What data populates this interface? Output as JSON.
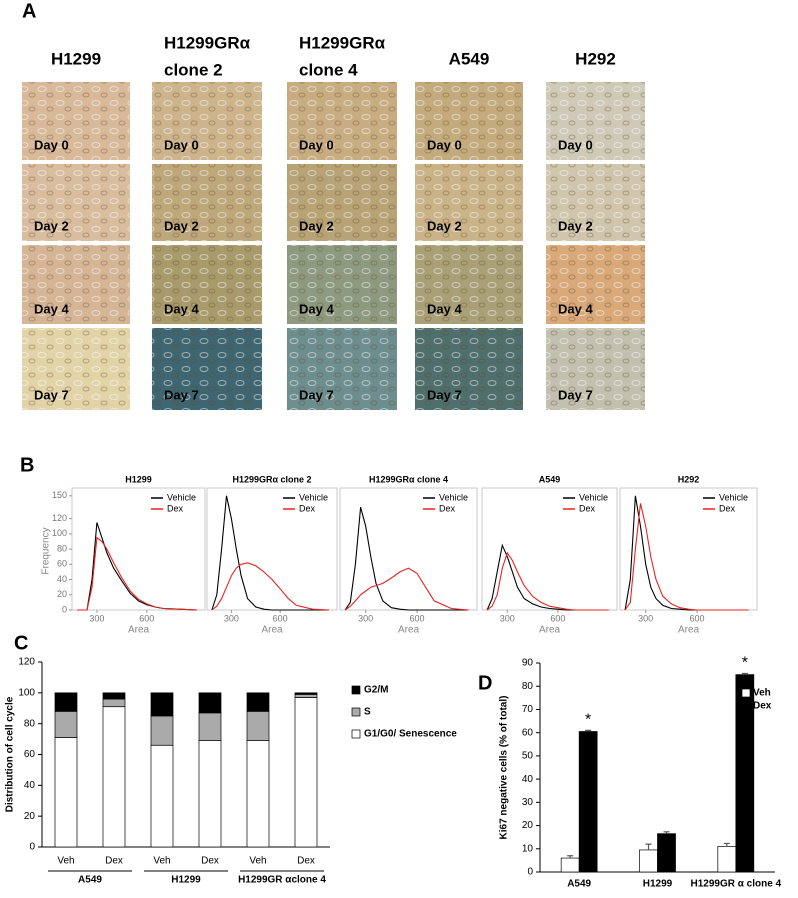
{
  "panel_labels": [
    "A",
    "B",
    "C",
    "D"
  ],
  "panel_a": {
    "columns": [
      [
        "H1299"
      ],
      [
        "H1299GRα",
        "clone 2"
      ],
      [
        "H1299GRα",
        "clone 4"
      ],
      [
        "A549"
      ],
      [
        "H292"
      ]
    ],
    "days": [
      "Day 0",
      "Day 2",
      "Day 4",
      "Day 7"
    ]
  },
  "chart_data": [
    {
      "type": "line",
      "title": "H1299",
      "xlabel": "Area",
      "ylabel": "Frequency",
      "x": [
        180,
        210,
        240,
        270,
        300,
        330,
        360,
        400,
        450,
        500,
        550,
        600,
        650,
        700,
        800,
        900
      ],
      "series": [
        {
          "name": "Vehicle",
          "color": "#000000",
          "values": [
            0,
            0,
            0,
            40,
            115,
            95,
            75,
            55,
            38,
            22,
            12,
            7,
            4,
            2,
            1,
            0
          ]
        },
        {
          "name": "Dex",
          "color": "#e8231f",
          "values": [
            0,
            0,
            0,
            30,
            95,
            90,
            80,
            62,
            42,
            25,
            14,
            8,
            4,
            2,
            1,
            0
          ]
        }
      ],
      "xlim": [
        150,
        950
      ],
      "ylim": [
        0,
        155
      ],
      "xticks": [
        300,
        600
      ],
      "yticks": [
        0,
        20,
        40,
        60,
        80,
        100,
        120,
        150
      ]
    },
    {
      "type": "line",
      "title": "H1299GRα  clone 2",
      "xlabel": "Area",
      "x": [
        180,
        210,
        240,
        270,
        300,
        330,
        360,
        400,
        450,
        500,
        550,
        600,
        650,
        700,
        800,
        900
      ],
      "series": [
        {
          "name": "Vehicle",
          "color": "#000000",
          "values": [
            0,
            20,
            80,
            150,
            120,
            80,
            45,
            15,
            4,
            1,
            0,
            0,
            0,
            0,
            0,
            0
          ]
        },
        {
          "name": "Dex",
          "color": "#e8231f",
          "values": [
            0,
            5,
            15,
            30,
            45,
            55,
            60,
            62,
            58,
            50,
            40,
            28,
            15,
            6,
            1,
            0
          ]
        }
      ],
      "xlim": [
        150,
        950
      ],
      "ylim": [
        0,
        155
      ],
      "xticks": [
        300,
        600
      ]
    },
    {
      "type": "line",
      "title": "H1299GRα  clone 4",
      "xlabel": "Area",
      "x": [
        180,
        210,
        240,
        270,
        300,
        330,
        360,
        400,
        450,
        500,
        550,
        600,
        650,
        700,
        800,
        900
      ],
      "series": [
        {
          "name": "Vehicle",
          "color": "#000000",
          "values": [
            0,
            10,
            60,
            135,
            110,
            70,
            35,
            12,
            3,
            1,
            0,
            0,
            0,
            0,
            0,
            0
          ]
        },
        {
          "name": "Dex",
          "color": "#e8231f",
          "values": [
            0,
            5,
            12,
            20,
            25,
            30,
            32,
            35,
            42,
            50,
            55,
            48,
            30,
            12,
            2,
            0
          ]
        }
      ],
      "xlim": [
        150,
        950
      ],
      "ylim": [
        0,
        155
      ],
      "xticks": [
        300,
        600
      ]
    },
    {
      "type": "line",
      "title": "A549",
      "xlabel": "Area",
      "x": [
        180,
        210,
        240,
        270,
        300,
        330,
        360,
        400,
        450,
        500,
        550,
        600,
        650,
        700,
        800,
        900
      ],
      "series": [
        {
          "name": "Vehicle",
          "color": "#000000",
          "values": [
            0,
            15,
            50,
            85,
            70,
            50,
            30,
            15,
            8,
            4,
            2,
            1,
            0,
            0,
            0,
            0
          ]
        },
        {
          "name": "Dex",
          "color": "#e8231f",
          "values": [
            0,
            5,
            20,
            55,
            75,
            65,
            50,
            32,
            18,
            10,
            5,
            3,
            1,
            0,
            0,
            0
          ]
        }
      ],
      "xlim": [
        150,
        950
      ],
      "ylim": [
        0,
        155
      ],
      "xticks": [
        300,
        600
      ]
    },
    {
      "type": "line",
      "title": "H292",
      "xlabel": "Area",
      "x": [
        180,
        210,
        240,
        270,
        300,
        330,
        360,
        400,
        450,
        500,
        550,
        600,
        650,
        700,
        800,
        900
      ],
      "series": [
        {
          "name": "Vehicle",
          "color": "#000000",
          "values": [
            0,
            40,
            150,
            110,
            60,
            30,
            15,
            6,
            2,
            1,
            0,
            0,
            0,
            0,
            0,
            0
          ]
        },
        {
          "name": "Dex",
          "color": "#e8231f",
          "values": [
            0,
            10,
            80,
            140,
            110,
            70,
            40,
            18,
            8,
            3,
            1,
            0,
            0,
            0,
            0,
            0
          ]
        }
      ],
      "xlim": [
        150,
        950
      ],
      "ylim": [
        0,
        155
      ],
      "xticks": [
        300,
        600
      ]
    },
    {
      "type": "stacked_bar",
      "ylabel": "Distribution of cell cycle",
      "categories": [
        "Veh",
        "Dex",
        "Veh",
        "Dex",
        "Veh",
        "Dex"
      ],
      "groups": [
        "A549",
        "H1299",
        "H1299GR αclone 4"
      ],
      "series": [
        {
          "name": "G1/G0/ Senescence",
          "color": "#ffffff",
          "values": [
            71,
            91,
            66,
            69,
            69,
            97
          ]
        },
        {
          "name": "S",
          "color": "#aaaaaa",
          "values": [
            17,
            5,
            19,
            18,
            19,
            2
          ]
        },
        {
          "name": "G2/M",
          "color": "#000000",
          "values": [
            12,
            4,
            15,
            13,
            12,
            1
          ]
        }
      ],
      "ylim": [
        0,
        120
      ],
      "yticks": [
        0,
        20,
        40,
        60,
        80,
        100,
        120
      ]
    },
    {
      "type": "grouped_bar",
      "ylabel": "Ki67 negative cells (% of total)",
      "categories": [
        "A549",
        "H1299",
        "H1299GR α clone 4"
      ],
      "series": [
        {
          "name": "Veh",
          "color": "#ffffff",
          "values": [
            6,
            9.5,
            11
          ],
          "errors": [
            1,
            2.5,
            1.3
          ]
        },
        {
          "name": "Dex",
          "color": "#000000",
          "values": [
            60.5,
            16.5,
            85
          ],
          "errors": [
            0.5,
            0.8,
            0.5
          ]
        }
      ],
      "annotations": [
        {
          "text": "*",
          "x": "A549"
        },
        {
          "text": "*",
          "x": "H1299GR α clone 4"
        }
      ],
      "ylim": [
        0,
        90
      ],
      "yticks": [
        0,
        10,
        20,
        30,
        40,
        50,
        60,
        70,
        80,
        90
      ]
    }
  ]
}
